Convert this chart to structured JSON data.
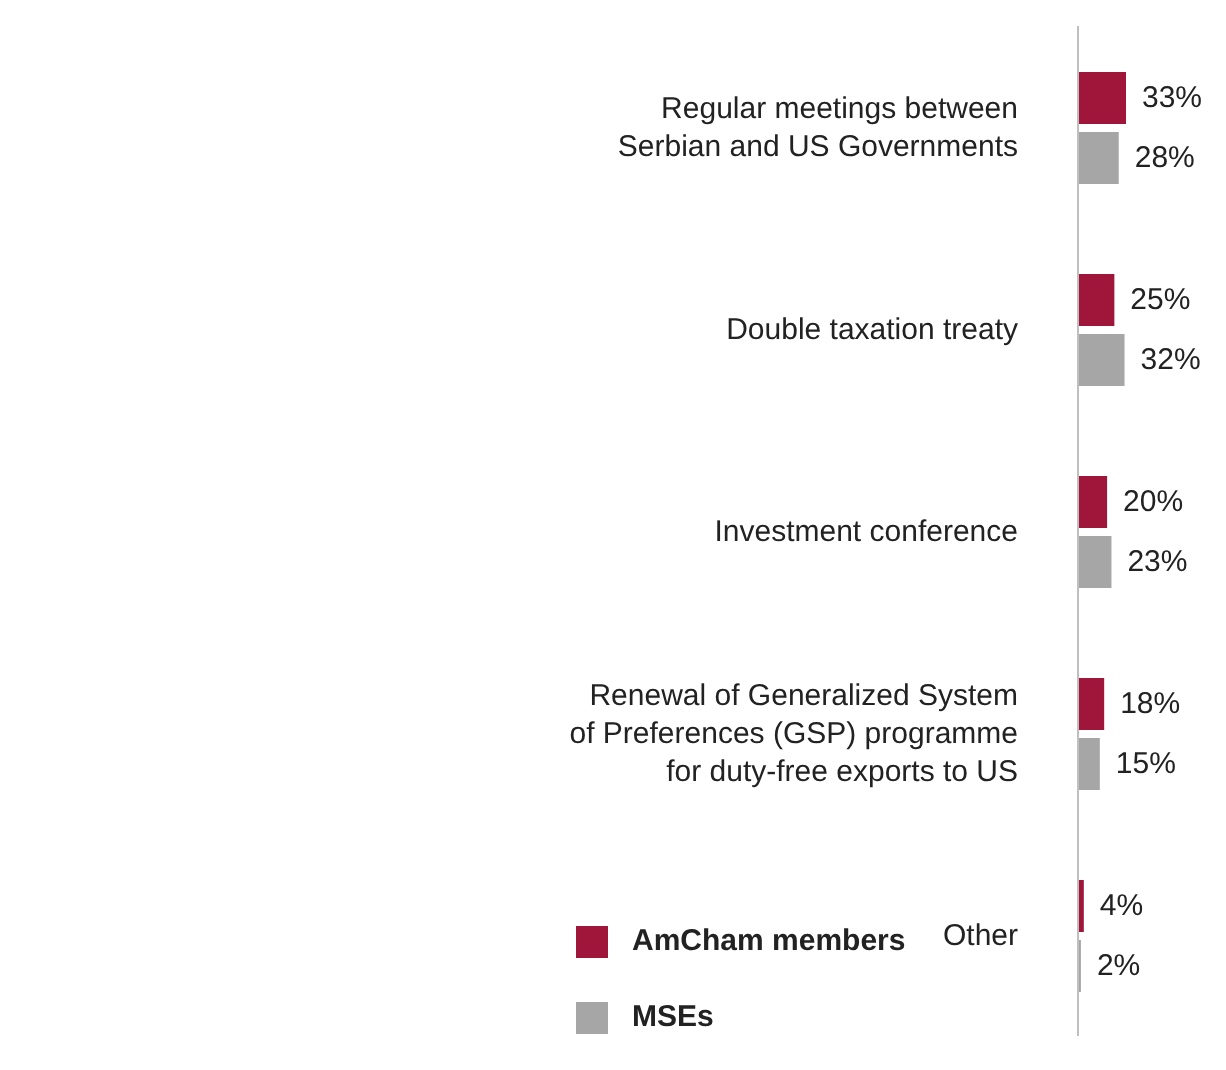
{
  "chart_data": {
    "type": "bar",
    "orientation": "horizontal",
    "categories": [
      "Regular meetings between Serbian and US Governments",
      "Double taxation treaty",
      "Investment conference",
      "Renewal of Generalized System of Preferences (GSP) programme for duty-free exports to US",
      "Other"
    ],
    "series": [
      {
        "name": "AmCham members",
        "color": "#a0163a",
        "values": [
          33,
          25,
          20,
          18,
          4
        ],
        "value_labels": [
          "33%",
          "25%",
          "20%",
          "18%",
          "4%"
        ]
      },
      {
        "name": "MSEs",
        "color": "#a6a6a6",
        "values": [
          28,
          32,
          23,
          15,
          2
        ],
        "value_labels": [
          "28%",
          "32%",
          "23%",
          "15%",
          "2%"
        ]
      }
    ],
    "legend": "bottom"
  }
}
